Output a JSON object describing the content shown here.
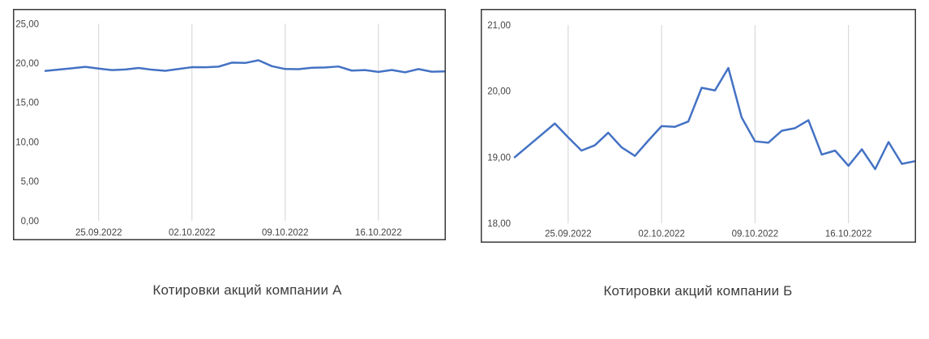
{
  "chart_data": [
    {
      "type": "line",
      "title": "Котировки акций компании А",
      "x_dates": [
        "21.09.2022",
        "22.09.2022",
        "23.09.2022",
        "24.09.2022",
        "25.09.2022",
        "26.09.2022",
        "27.09.2022",
        "28.09.2022",
        "29.09.2022",
        "30.09.2022",
        "01.10.2022",
        "02.10.2022",
        "03.10.2022",
        "04.10.2022",
        "05.10.2022",
        "06.10.2022",
        "07.10.2022",
        "08.10.2022",
        "09.10.2022",
        "10.10.2022",
        "11.10.2022",
        "12.10.2022",
        "13.10.2022",
        "14.10.2022",
        "15.10.2022",
        "16.10.2022",
        "17.10.2022",
        "18.10.2022",
        "19.10.2022",
        "20.10.2022",
        "21.10.2022"
      ],
      "series": [
        {
          "name": "Котировки акций компании А",
          "values": [
            19.0,
            19.17,
            19.34,
            19.51,
            19.3,
            19.1,
            19.18,
            19.37,
            19.15,
            19.02,
            19.25,
            19.47,
            19.46,
            19.54,
            20.05,
            20.01,
            20.35,
            19.6,
            19.24,
            19.22,
            19.4,
            19.44,
            19.56,
            19.04,
            19.1,
            18.87,
            19.12,
            18.82,
            19.23,
            18.9,
            18.94
          ]
        }
      ],
      "xlabel": "",
      "ylabel": "",
      "ylim": [
        0,
        25
      ],
      "ytick_labels": [
        "0,00",
        "5,00",
        "10,00",
        "15,00",
        "20,00",
        "25,00"
      ],
      "ytick_values": [
        0,
        5,
        10,
        15,
        20,
        25
      ],
      "xtick_labels": [
        "25.09.2022",
        "02.10.2022",
        "09.10.2022",
        "16.10.2022"
      ],
      "xtick_indices": [
        4,
        11,
        18,
        25
      ],
      "grid": "vertical",
      "legend": "none",
      "line_color": "#4472C4",
      "grid_color": "#d6d6d6",
      "frame_color": "#3a3a3a",
      "tick_text_color": "#444444"
    },
    {
      "type": "line",
      "title": "Котировки акций компании Б",
      "x_dates": [
        "21.09.2022",
        "22.09.2022",
        "23.09.2022",
        "24.09.2022",
        "25.09.2022",
        "26.09.2022",
        "27.09.2022",
        "28.09.2022",
        "29.09.2022",
        "30.09.2022",
        "01.10.2022",
        "02.10.2022",
        "03.10.2022",
        "04.10.2022",
        "05.10.2022",
        "06.10.2022",
        "07.10.2022",
        "08.10.2022",
        "09.10.2022",
        "10.10.2022",
        "11.10.2022",
        "12.10.2022",
        "13.10.2022",
        "14.10.2022",
        "15.10.2022",
        "16.10.2022",
        "17.10.2022",
        "18.10.2022",
        "19.10.2022",
        "20.10.2022",
        "21.10.2022"
      ],
      "series": [
        {
          "name": "Котировки акций компании Б",
          "values": [
            19.0,
            19.17,
            19.34,
            19.51,
            19.3,
            19.1,
            19.18,
            19.37,
            19.15,
            19.02,
            19.25,
            19.47,
            19.46,
            19.54,
            20.05,
            20.01,
            20.35,
            19.6,
            19.24,
            19.22,
            19.4,
            19.44,
            19.56,
            19.04,
            19.1,
            18.87,
            19.12,
            18.82,
            19.23,
            18.9,
            18.94
          ]
        }
      ],
      "xlabel": "",
      "ylabel": "",
      "ylim": [
        18,
        21
      ],
      "ytick_labels": [
        "18,00",
        "19,00",
        "20,00",
        "21,00"
      ],
      "ytick_values": [
        18,
        19,
        20,
        21
      ],
      "xtick_labels": [
        "25.09.2022",
        "02.10.2022",
        "09.10.2022",
        "16.10.2022"
      ],
      "xtick_indices": [
        4,
        11,
        18,
        25
      ],
      "grid": "vertical",
      "legend": "none",
      "line_color": "#4472C4",
      "grid_color": "#d6d6d6",
      "frame_color": "#3a3a3a",
      "tick_text_color": "#444444"
    }
  ]
}
